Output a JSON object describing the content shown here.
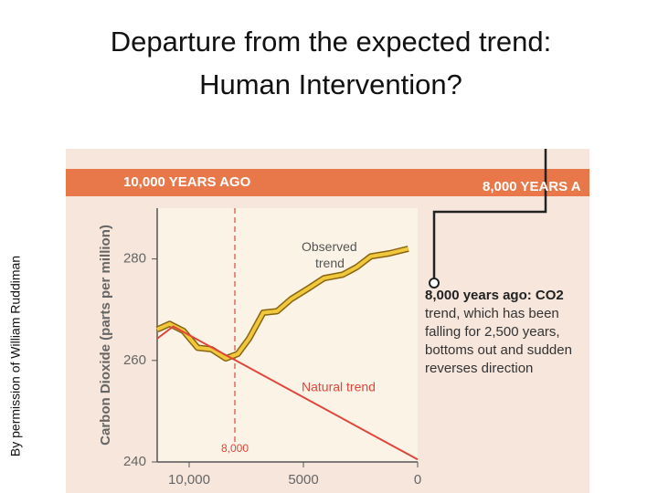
{
  "slide_title": [
    "Departure from the expected trend:",
    "Human Intervention?"
  ],
  "credit": "By permission of William Ruddiman",
  "chart_data": {
    "type": "line",
    "band_left": "10,000 YEARS AGO",
    "band_right": "8,000 YEARS A",
    "y_label": "Carbon Dioxide (parts per million)",
    "xlim": [
      11400,
      0
    ],
    "ylim": [
      240,
      290
    ],
    "xticks": [
      {
        "value": 10000,
        "label": "10,000"
      },
      5000,
      0
    ],
    "yticks": [
      240,
      260,
      280
    ],
    "marker": {
      "value": 8000,
      "label": "8,000"
    },
    "series": [
      {
        "name": "Observed trend",
        "color": "#f0c83c",
        "x": [
          11400,
          10860,
          10250,
          9630,
          9020,
          8400,
          7870,
          7380,
          6760,
          6150,
          5530,
          4710,
          4100,
          3280,
          2660,
          2050,
          1230,
          410
        ],
        "values": [
          266.1,
          267.2,
          265.8,
          262.5,
          262.2,
          260.4,
          261.3,
          264.3,
          269.4,
          269.7,
          272.1,
          274.4,
          276.2,
          276.9,
          278.4,
          280.5,
          281.1,
          282.0
        ]
      },
      {
        "name": "Natural trend",
        "color": "#e0463c",
        "x": [
          11400,
          10700,
          0
        ],
        "values": [
          264.3,
          266.7,
          240.5
        ]
      }
    ],
    "note": [
      "8,000 years ago: CO2",
      "trend, which has been",
      "falling for 2,500 years,",
      "bottoms out and sudden",
      "reverses direction"
    ]
  }
}
